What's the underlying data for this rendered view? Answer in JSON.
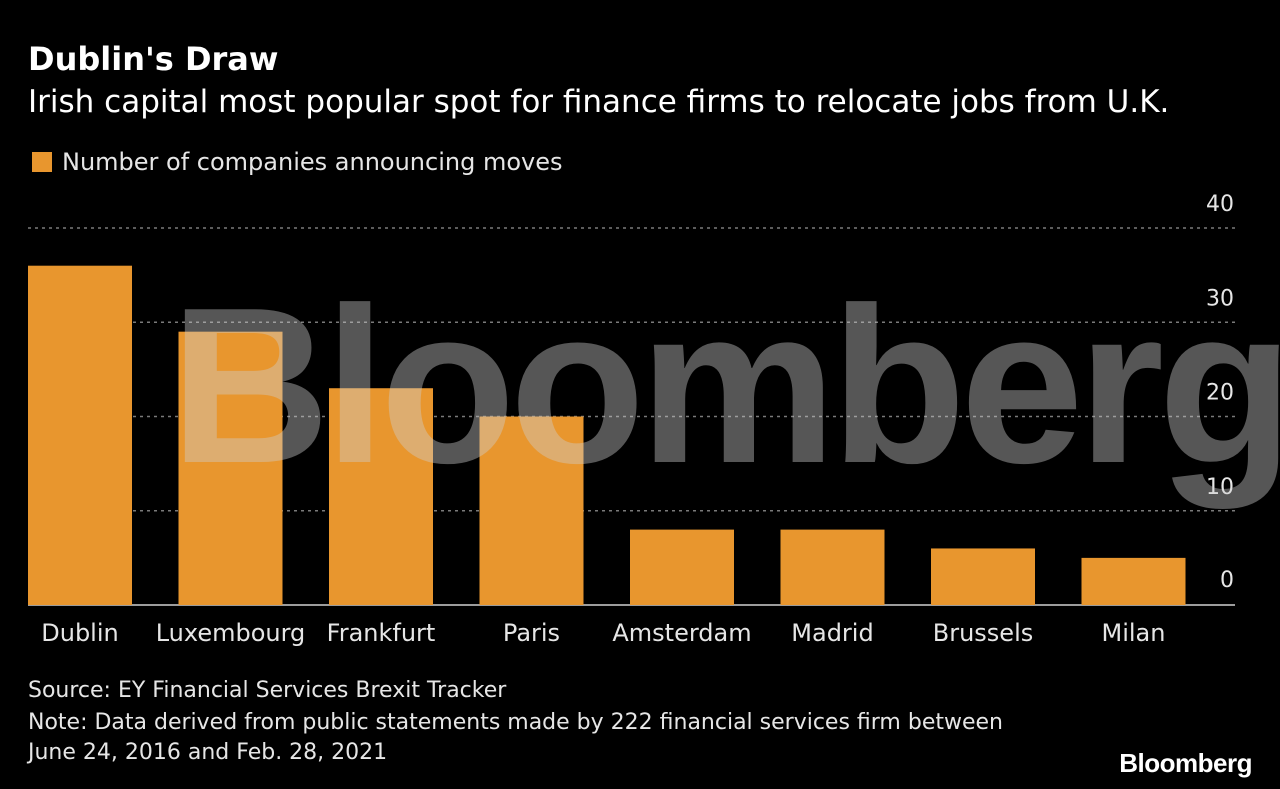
{
  "header": {
    "title": "Dublin's Draw",
    "subtitle": "Irish capital most popular spot for finance firms to relocate jobs from U.K."
  },
  "legend": {
    "label": "Number of companies announcing moves"
  },
  "colors": {
    "bar": "#E8962E",
    "background": "#000000",
    "gridline": "#7a7a7a",
    "tick_text": "#e6e6e6"
  },
  "watermark_text": "Bloomberg",
  "footer": {
    "source": "Source: EY Financial Services Brexit Tracker",
    "note": "Note: Data derived from public statements made by 222 financial services firm between June 24, 2016 and Feb. 28, 2021",
    "brand": "Bloomberg"
  },
  "chart_data": {
    "type": "bar",
    "title": "Dublin's Draw",
    "subtitle": "Irish capital most popular spot for finance firms to relocate jobs from U.K.",
    "categories": [
      "Dublin",
      "Luxembourg",
      "Frankfurt",
      "Paris",
      "Amsterdam",
      "Madrid",
      "Brussels",
      "Milan"
    ],
    "series": [
      {
        "name": "Number of companies announcing moves",
        "values": [
          36,
          29,
          23,
          20,
          8,
          8,
          6,
          5
        ]
      }
    ],
    "xlabel": "",
    "ylabel": "",
    "ylim": [
      0,
      40
    ],
    "yticks": [
      0,
      10,
      20,
      30,
      40
    ],
    "grid": true,
    "legend_position": "top-left",
    "y_axis_position": "right"
  }
}
